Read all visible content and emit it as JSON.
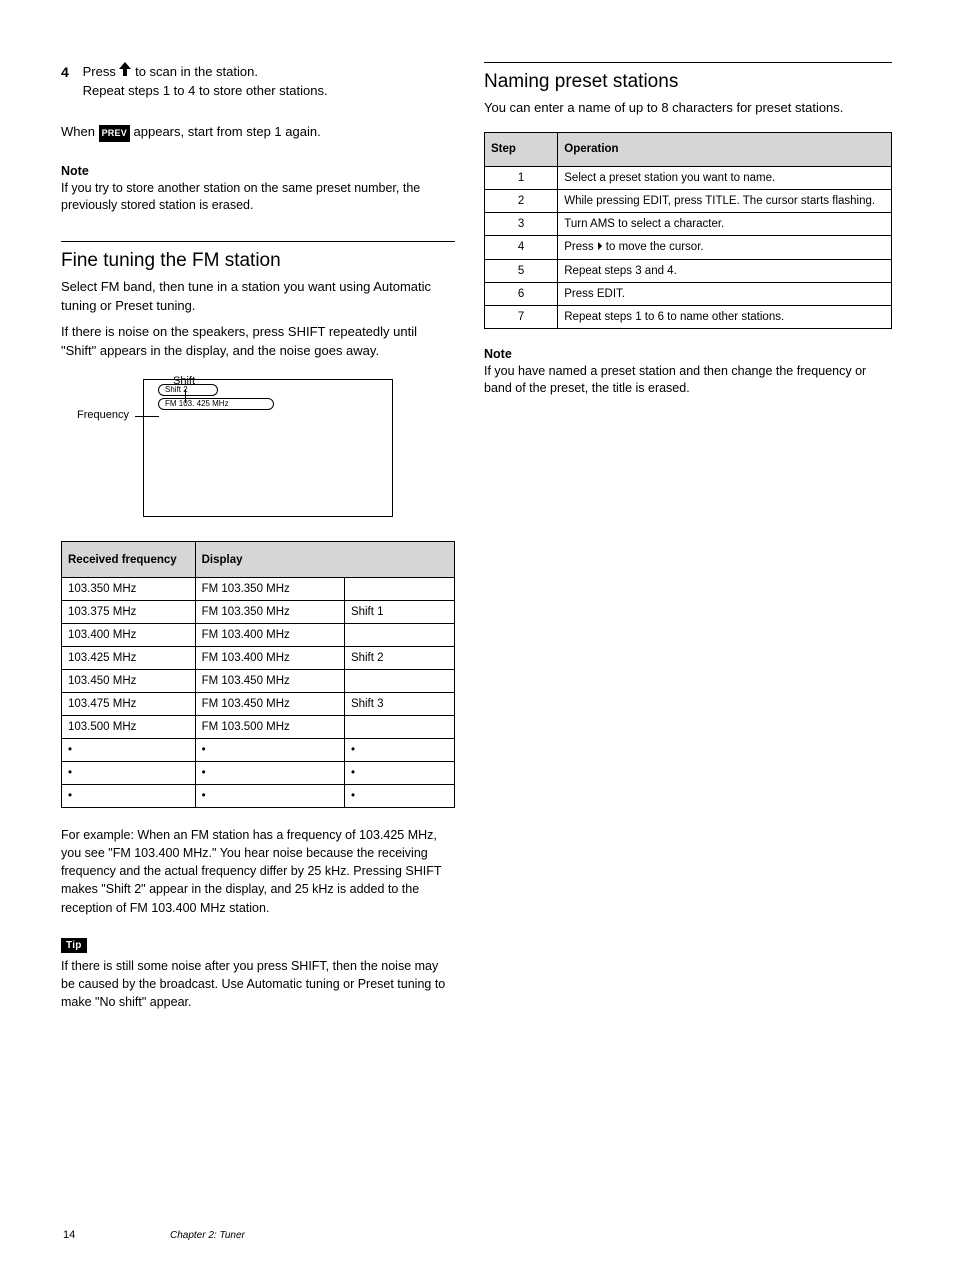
{
  "left": {
    "step4_num": "4",
    "step4_line1": "Press ",
    "step4_line1b": " to scan in the station.",
    "step4_line2": "Repeat steps 1 to 4 to store other stations.",
    "prev_badge": "PREV",
    "note_title": "Note",
    "note_body": "If you try to store another station on the same preset number, the previously stored station is erased.",
    "section_title": "Fine tuning the FM station",
    "section_sub_a": "Select FM band, then tune in a station you want using Automatic tuning or Preset tuning.",
    "section_sub_b": "If there is noise on the speakers, press SHIFT repeatedly until \"Shift\" appears in the display, and the noise goes away.",
    "diag_shift_label": "Shift",
    "diag_freq_label": "Frequency",
    "diag_pill1_text": "Shift 2",
    "diag_pill2_text": "FM 103. 425 MHz",
    "table1": {
      "head_col1": "Received frequency",
      "head_col2": "Display",
      "rows": [
        [
          "103.350 MHz",
          "FM 103.350 MHz",
          ""
        ],
        [
          "103.375 MHz",
          "FM 103.350 MHz",
          "Shift 1"
        ],
        [
          "103.400 MHz",
          "FM 103.400 MHz",
          ""
        ],
        [
          "103.425 MHz",
          "FM 103.400 MHz",
          "Shift 2"
        ],
        [
          "103.450 MHz",
          "FM 103.450 MHz",
          ""
        ],
        [
          "103.475 MHz",
          "FM 103.450 MHz",
          "Shift 3"
        ],
        [
          "103.500 MHz",
          "FM 103.500 MHz",
          ""
        ],
        [
          "•",
          "•",
          "•"
        ],
        [
          "•",
          "•",
          "•"
        ],
        [
          "•",
          "•",
          "•"
        ]
      ],
      "widths": [
        "34%",
        "38%",
        "28%"
      ]
    },
    "para_example": "For example: When an FM station has a frequency of 103.425 MHz, you see \"FM 103.400 MHz.\" You hear noise because the receiving frequency and the actual frequency differ by 25 kHz. Pressing SHIFT makes \"Shift 2\" appear in the display, and 25 kHz is added to the reception of FM 103.400 MHz station.",
    "tip_badge": "Tip",
    "tip_body": "If there is still some noise after you press SHIFT, then the noise may be caused by the broadcast. Use Automatic tuning or Preset tuning to make \"No shift\" appear."
  },
  "right": {
    "section_title": "Naming preset stations",
    "section_sub": "You can enter a name of up to 8 characters for preset stations.",
    "table2": {
      "head_col1": "Step",
      "head_col2": "Operation",
      "rows": [
        [
          "1",
          "Select a preset station you want to name."
        ],
        [
          "2",
          "While pressing EDIT, press TITLE. The cursor starts flashing."
        ],
        [
          "3",
          "Turn AMS to select a character."
        ],
        [
          "4",
          "Press ⏵ to move the cursor."
        ],
        [
          "5",
          "Repeat steps 3 and 4."
        ],
        [
          "6",
          "Press EDIT."
        ],
        [
          "7",
          "Repeat steps 1 to 6 to name other stations."
        ]
      ],
      "widths": [
        "18%",
        "82%"
      ]
    },
    "note_title": "Note",
    "note_body": "If you have named a preset station and then change the frequency or band of the preset, the title is erased."
  },
  "footer_page": "14",
  "footer_text": "Chapter 2: Tuner"
}
